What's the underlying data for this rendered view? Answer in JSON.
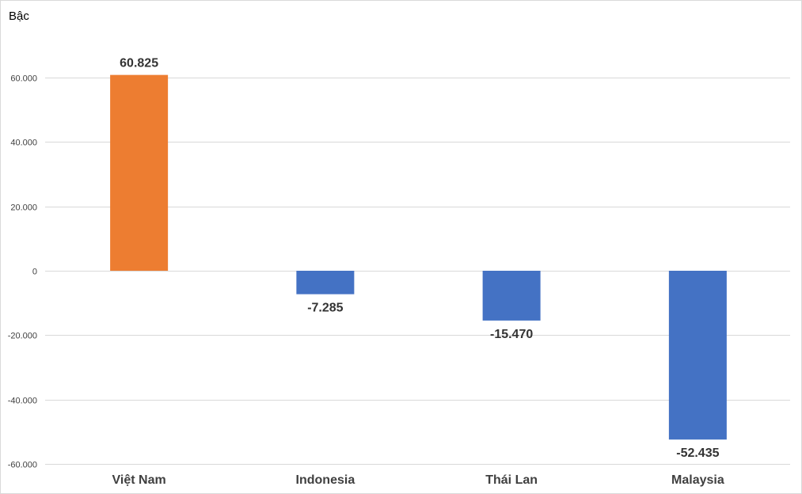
{
  "chart_data": {
    "type": "bar",
    "title": "",
    "xlabel": "",
    "ylabel": "Bậc",
    "categories": [
      "Việt Nam",
      "Indonesia",
      "Thái Lan",
      "Malaysia"
    ],
    "values": [
      60825,
      -7285,
      -15470,
      -52435
    ],
    "value_labels": [
      "60.825",
      "-7.285",
      "-15.470",
      "-52.435"
    ],
    "bar_colors": [
      "#ED7D31",
      "#4472C4",
      "#4472C4",
      "#4472C4"
    ],
    "ylim": [
      -60000,
      60000
    ],
    "yticks": [
      60000,
      40000,
      20000,
      0,
      -20000,
      -40000,
      -60000
    ],
    "ytick_labels": [
      "60.000",
      "40.000",
      "20.000",
      "0",
      "-20.000",
      "-40.000",
      "-60.000"
    ],
    "grid": true,
    "legend": "none"
  }
}
